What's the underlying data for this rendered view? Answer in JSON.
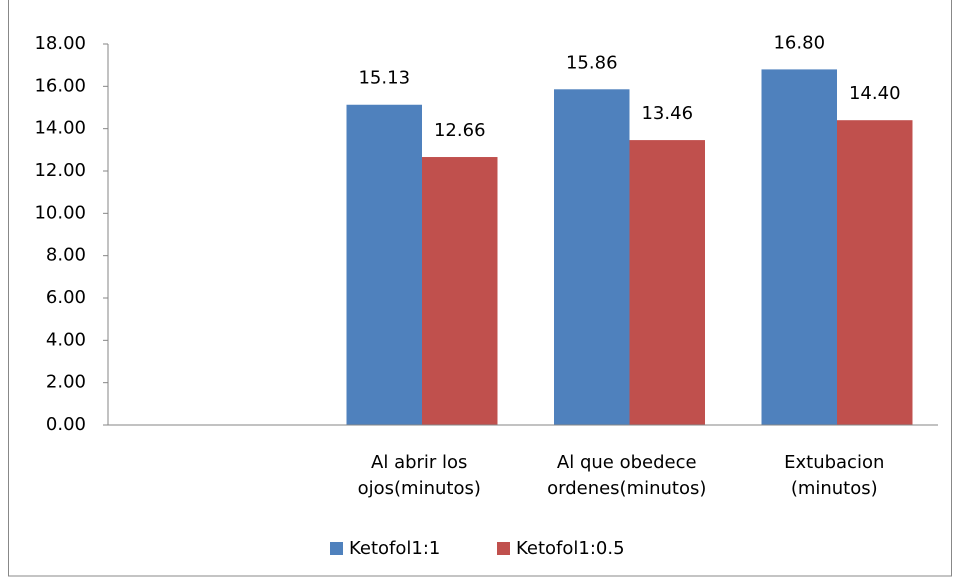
{
  "chart_data": {
    "type": "bar",
    "categories": [
      null,
      "Al abrir los\nojos(minutos)",
      "Al que obedece\nordenes(minutos)",
      "Extubacion\n(minutos)"
    ],
    "series": [
      {
        "name": "Ketofol1:1",
        "color": "#4f81bd",
        "values": [
          null,
          15.13,
          15.86,
          16.8
        ],
        "value_labels": [
          null,
          "15.13",
          "15.86",
          "16.80"
        ]
      },
      {
        "name": "Ketofol1:0.5",
        "color": "#c0504d",
        "values": [
          null,
          12.66,
          13.46,
          14.4
        ],
        "value_labels": [
          null,
          "12.66",
          "13.46",
          "14.40"
        ]
      }
    ],
    "ylim": [
      0,
      18
    ],
    "yticks": [
      {
        "value": 0,
        "label": "0.00"
      },
      {
        "value": 2,
        "label": "2.00"
      },
      {
        "value": 4,
        "label": "4.00"
      },
      {
        "value": 6,
        "label": "6.00"
      },
      {
        "value": 8,
        "label": "8.00"
      },
      {
        "value": 10,
        "label": "10.00"
      },
      {
        "value": 12,
        "label": "12.00"
      },
      {
        "value": 14,
        "label": "14.00"
      },
      {
        "value": 16,
        "label": "16.00"
      },
      {
        "value": 18,
        "label": "18.00"
      }
    ],
    "grid": false,
    "legend": "bottom"
  }
}
